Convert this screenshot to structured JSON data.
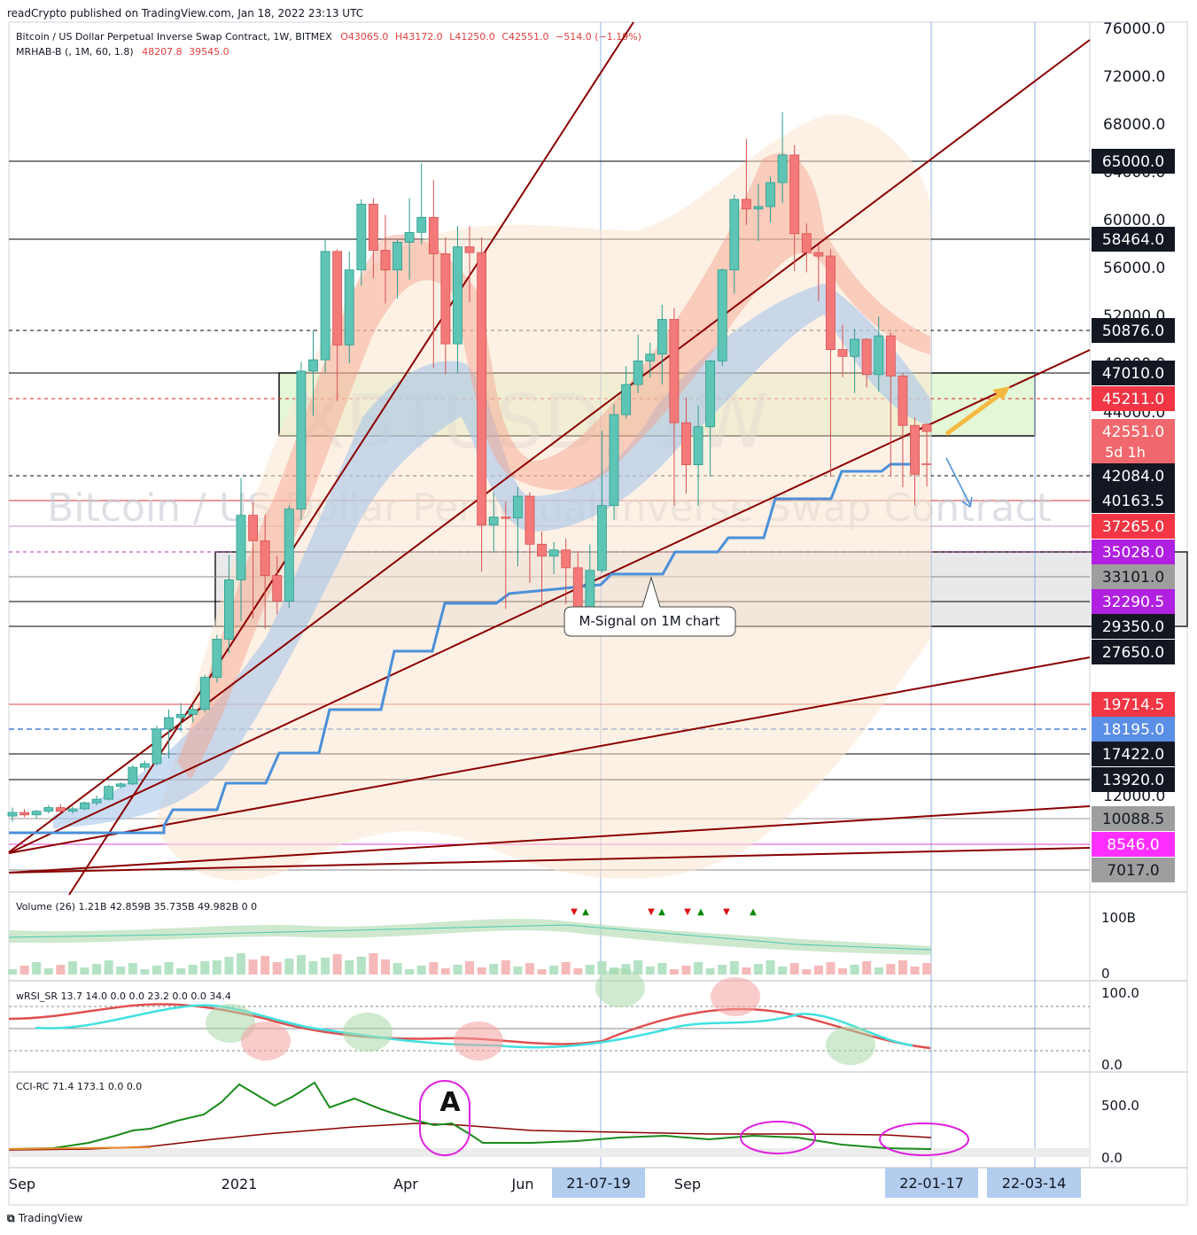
{
  "source_line": "readCrypto published on TradingView.com, Jan 18, 2022 23:13 UTC",
  "footer_brand": "TradingView",
  "header": {
    "symbol_line": "Bitcoin / US Dollar Perpetual Inverse Swap Contract, 1W, BITMEX",
    "ohlc": {
      "o": "O43065.0",
      "h": "H43172.0",
      "l": "L41250.0",
      "c": "C42551.0",
      "chg": "−514.0 (−1.19%)"
    },
    "indicator_line": "MRHAB-B (, 1M, 60, 1.8)",
    "indicator_vals": [
      "48207.8",
      "39545.0"
    ]
  },
  "watermark": {
    "ticker": "XBTUSD, 1W",
    "name": "Bitcoin / US Dollar Perpetual Inverse Swap Contract"
  },
  "annotations": {
    "msignal": "M-Signal on 1M chart",
    "letter_a": "A"
  },
  "colors": {
    "up": "#5ec5b6",
    "down": "#f47a7a",
    "trend": "#8b0000",
    "msignal": "#4a90d9",
    "green_box": "#d8f5c8"
  },
  "chart_data": {
    "type": "candlestick",
    "timeframe": "1W",
    "ylim": [
      6500,
      77000
    ],
    "y_ticks": [
      "76000.0",
      "72000.0",
      "68000.0",
      "64000.0",
      "60000.0",
      "56000.0",
      "52000.0",
      "48000.0",
      "44000.0",
      "12000.0"
    ],
    "x_ticks": [
      "Sep",
      "2021",
      "Apr",
      "Jun",
      "Sep"
    ],
    "x_markers": [
      "21-07-19",
      "22-01-17",
      "22-03-14"
    ],
    "price_labels": [
      {
        "value": "65000.0",
        "style": "black"
      },
      {
        "value": "58464.0",
        "style": "black"
      },
      {
        "value": "50876.0",
        "style": "black"
      },
      {
        "value": "47010.0",
        "style": "black"
      },
      {
        "value": "45211.0",
        "style": "red"
      },
      {
        "value": "42551.0",
        "style": "salmon",
        "sub": "5d 1h"
      },
      {
        "value": "42084.0",
        "style": "black"
      },
      {
        "value": "40163.5",
        "style": "black"
      },
      {
        "value": "37265.0",
        "style": "red"
      },
      {
        "value": "35028.0",
        "style": "purple"
      },
      {
        "value": "33101.0",
        "style": "gray"
      },
      {
        "value": "32290.5",
        "style": "purple"
      },
      {
        "value": "29350.0",
        "style": "black"
      },
      {
        "value": "27650.0",
        "style": "black"
      },
      {
        "value": "19714.5",
        "style": "red"
      },
      {
        "value": "18195.0",
        "style": "blue"
      },
      {
        "value": "17422.0",
        "style": "black"
      },
      {
        "value": "13920.0",
        "style": "black"
      },
      {
        "value": "10088.5",
        "style": "gray"
      },
      {
        "value": "8546.0",
        "style": "magenta"
      },
      {
        "value": "7017.0",
        "style": "gray"
      }
    ],
    "candles_ohlc": [
      [
        10300,
        11000,
        9900,
        10600
      ],
      [
        10600,
        10900,
        10200,
        10400
      ],
      [
        10400,
        10800,
        10100,
        10700
      ],
      [
        10700,
        11200,
        10500,
        11000
      ],
      [
        11000,
        11300,
        10600,
        10700
      ],
      [
        10700,
        11100,
        10500,
        10900
      ],
      [
        10900,
        11500,
        10800,
        11400
      ],
      [
        11400,
        12000,
        11200,
        11700
      ],
      [
        11700,
        13300,
        11600,
        13100
      ],
      [
        13100,
        13600,
        12900,
        13400
      ],
      [
        13400,
        15900,
        13300,
        15600
      ],
      [
        15600,
        16500,
        15200,
        16100
      ],
      [
        16100,
        18400,
        15800,
        18200
      ],
      [
        18200,
        19400,
        16800,
        18900
      ],
      [
        18900,
        19900,
        18100,
        19100
      ],
      [
        19100,
        19700,
        18600,
        19400
      ],
      [
        19400,
        24200,
        19200,
        23800
      ],
      [
        23800,
        28800,
        23000,
        28500
      ],
      [
        28500,
        34800,
        27500,
        33000
      ],
      [
        33000,
        41900,
        30000,
        38500
      ],
      [
        38500,
        40000,
        30300,
        36000
      ],
      [
        36000,
        38600,
        29200,
        33200
      ],
      [
        33200,
        34700,
        30800,
        32300
      ],
      [
        32300,
        39600,
        31500,
        39200
      ],
      [
        39200,
        48100,
        38000,
        47200
      ],
      [
        47200,
        50900,
        43700,
        48300
      ],
      [
        48300,
        58400,
        47000,
        57400
      ],
      [
        57400,
        57600,
        45000,
        49600
      ],
      [
        49600,
        57400,
        48000,
        55800
      ],
      [
        55800,
        61700,
        54500,
        61300
      ],
      [
        61300,
        61800,
        55100,
        57500
      ],
      [
        57500,
        60400,
        53000,
        55800
      ],
      [
        55800,
        58400,
        53400,
        58200
      ],
      [
        58200,
        61800,
        55000,
        59000
      ],
      [
        59000,
        64800,
        58000,
        60200
      ],
      [
        60200,
        63300,
        47500,
        57200
      ],
      [
        57200,
        58600,
        46900,
        49700
      ],
      [
        49700,
        59500,
        47000,
        57800
      ],
      [
        57800,
        59500,
        53100,
        57300
      ],
      [
        57300,
        58600,
        33500,
        37400
      ],
      [
        37400,
        40800,
        35000,
        38300
      ],
      [
        38300,
        40000,
        31400,
        38200
      ],
      [
        38200,
        41200,
        33900,
        40500
      ],
      [
        40500,
        40800,
        32900,
        35700
      ],
      [
        35700,
        36800,
        31600,
        34700
      ],
      [
        34700,
        35900,
        33300,
        35200
      ],
      [
        35200,
        36200,
        32000,
        33800
      ],
      [
        33800,
        35100,
        29300,
        31600
      ],
      [
        31600,
        35700,
        31200,
        33600
      ],
      [
        33600,
        42600,
        33400,
        39600
      ],
      [
        39600,
        44700,
        38000,
        43800
      ],
      [
        43800,
        47700,
        43500,
        46200
      ],
      [
        46200,
        50500,
        45600,
        48200
      ],
      [
        48200,
        49800,
        46700,
        48800
      ],
      [
        48800,
        52900,
        46200,
        51700
      ],
      [
        51700,
        52600,
        39600,
        43200
      ],
      [
        43200,
        45300,
        40700,
        42200
      ],
      [
        42200,
        44600,
        39600,
        42900
      ],
      [
        42900,
        48300,
        42000,
        48200
      ],
      [
        48200,
        55900,
        47700,
        55800
      ],
      [
        55800,
        62100,
        53800,
        61700
      ],
      [
        61700,
        66800,
        59600,
        60900
      ],
      [
        60900,
        63000,
        58300,
        61100
      ],
      [
        61100,
        63600,
        59800,
        63100
      ],
      [
        63100,
        69000,
        61400,
        65500
      ],
      [
        65500,
        66300,
        55700,
        58900
      ],
      [
        58900,
        59700,
        55600,
        57300
      ],
      [
        57300,
        58000,
        53200,
        57000
      ],
      [
        57000,
        57600,
        42000,
        49200
      ],
      [
        49200,
        51300,
        46700,
        48600
      ],
      [
        48600,
        51000,
        45600,
        50100
      ],
      [
        50100,
        50200,
        46000,
        46900
      ],
      [
        46900,
        51900,
        45700,
        50400
      ],
      [
        50400,
        50700,
        42000,
        46800
      ],
      [
        46800,
        47000,
        41200,
        43000
      ],
      [
        43000,
        43600,
        39600,
        42100
      ],
      [
        43065,
        43172,
        41250,
        42551
      ]
    ],
    "volume_legend": "Volume (26)  1.21B  42.859B  35.735B  49.982B  0  0",
    "volume_axis": [
      "100B",
      "0"
    ],
    "wrsi_legend": "wRSI_SR  13.7  14.0  0.0  0.0  23.2  0.0  0.0  34.4",
    "wrsi_axis": [
      "100.0",
      "0.0"
    ],
    "cci_legend": "CCI-RC  71.4  173.1  0.0  0.0",
    "cci_axis": [
      "500.0",
      "0.0"
    ]
  }
}
